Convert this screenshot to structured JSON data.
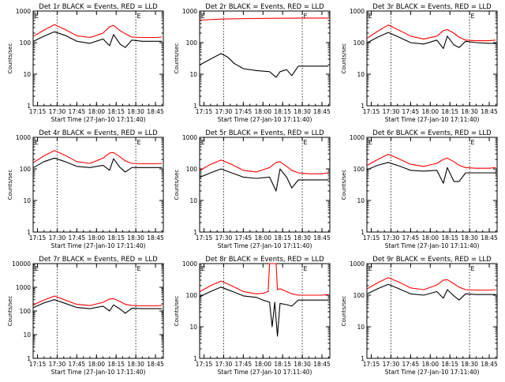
{
  "colors": {
    "events": "#000000",
    "lld": "#ff0000",
    "axis": "#000000",
    "background": "#ffffff"
  },
  "common": {
    "xlabel": "Start Time (27-Jan-10 17:11:40)",
    "ylabel": "Counts/sec",
    "xticks": [
      "17:15",
      "17:30",
      "17:45",
      "18:00",
      "18:15",
      "18:30",
      "18:45"
    ],
    "marker_label": "E"
  },
  "chart_data": [
    {
      "type": "line",
      "title": "Det 1r BLACK = Events, RED = LLD",
      "y_scale": "log",
      "ylim": [
        1,
        1000
      ],
      "yticks": [
        "1",
        "10",
        "100",
        "1000"
      ],
      "x_range_minutes": [
        "17:11:40",
        "18:51"
      ],
      "vlines": [
        "17:30",
        "18:30"
      ],
      "series": [
        {
          "name": "Events",
          "color": "#000000",
          "x": [
            "17:12",
            "17:20",
            "17:28",
            "17:36",
            "17:45",
            "17:55",
            "18:05",
            "18:10",
            "18:13",
            "18:18",
            "18:22",
            "18:27",
            "18:35",
            "18:45",
            "18:50"
          ],
          "values": [
            110,
            160,
            220,
            170,
            110,
            95,
            130,
            80,
            180,
            90,
            70,
            120,
            110,
            110,
            110
          ]
        },
        {
          "name": "LLD",
          "color": "#ff0000",
          "x": [
            "17:12",
            "17:20",
            "17:28",
            "17:36",
            "17:45",
            "17:55",
            "18:05",
            "18:10",
            "18:13",
            "18:18",
            "18:22",
            "18:27",
            "18:35",
            "18:45",
            "18:50"
          ],
          "values": [
            160,
            250,
            370,
            260,
            165,
            145,
            200,
            320,
            350,
            240,
            190,
            150,
            145,
            145,
            150
          ]
        }
      ]
    },
    {
      "type": "line",
      "title": "Det 2r BLACK = Events, RED = LLD",
      "y_scale": "log",
      "ylim": [
        1,
        1000
      ],
      "yticks": [
        "1",
        "10",
        "100",
        "1000"
      ],
      "x_range_minutes": [
        "17:11:40",
        "18:51"
      ],
      "vlines": [
        "17:30",
        "18:30"
      ],
      "series": [
        {
          "name": "Events",
          "color": "#000000",
          "x": [
            "17:12",
            "17:20",
            "17:28",
            "17:33",
            "17:38",
            "17:45",
            "17:55",
            "18:05",
            "18:10",
            "18:13",
            "18:18",
            "18:22",
            "18:27",
            "18:35",
            "18:45",
            "18:50"
          ],
          "values": [
            20,
            30,
            45,
            35,
            22,
            15,
            13,
            12,
            8,
            12,
            14,
            9,
            18,
            18,
            18,
            18
          ]
        },
        {
          "name": "LLD",
          "color": "#ff0000",
          "x": [
            "17:12",
            "17:30",
            "17:50",
            "18:10",
            "18:30",
            "18:50"
          ],
          "values": [
            520,
            560,
            580,
            590,
            600,
            600
          ]
        }
      ]
    },
    {
      "type": "line",
      "title": "Det 3r BLACK = Events, RED = LLD",
      "y_scale": "log",
      "ylim": [
        1,
        1000
      ],
      "yticks": [
        "1",
        "10",
        "100",
        "1000"
      ],
      "x_range_minutes": [
        "17:11:40",
        "18:51"
      ],
      "vlines": [
        "17:30",
        "18:30"
      ],
      "series": [
        {
          "name": "Events",
          "color": "#000000",
          "x": [
            "17:12",
            "17:20",
            "17:28",
            "17:36",
            "17:45",
            "17:55",
            "18:05",
            "18:10",
            "18:13",
            "18:18",
            "18:22",
            "18:27",
            "18:35",
            "18:45",
            "18:50"
          ],
          "values": [
            100,
            150,
            210,
            150,
            100,
            90,
            120,
            65,
            160,
            85,
            70,
            110,
            100,
            95,
            95
          ]
        },
        {
          "name": "LLD",
          "color": "#ff0000",
          "x": [
            "17:12",
            "17:20",
            "17:28",
            "17:36",
            "17:45",
            "17:55",
            "18:05",
            "18:10",
            "18:13",
            "18:18",
            "18:22",
            "18:27",
            "18:35",
            "18:45",
            "18:50"
          ],
          "values": [
            140,
            230,
            360,
            250,
            160,
            130,
            160,
            240,
            260,
            200,
            150,
            120,
            115,
            115,
            120
          ]
        }
      ]
    },
    {
      "type": "line",
      "title": "Det 4r BLACK = Events, RED = LLD",
      "y_scale": "log",
      "ylim": [
        1,
        1000
      ],
      "yticks": [
        "1",
        "10",
        "100",
        "1000"
      ],
      "x_range_minutes": [
        "17:11:40",
        "18:51"
      ],
      "vlines": [
        "17:30",
        "18:30"
      ],
      "series": [
        {
          "name": "Events",
          "color": "#000000",
          "x": [
            "17:12",
            "17:20",
            "17:28",
            "17:36",
            "17:45",
            "17:55",
            "18:05",
            "18:10",
            "18:13",
            "18:18",
            "18:22",
            "18:27",
            "18:35",
            "18:45",
            "18:50"
          ],
          "values": [
            110,
            170,
            220,
            170,
            120,
            110,
            130,
            90,
            210,
            110,
            80,
            110,
            110,
            110,
            110
          ]
        },
        {
          "name": "LLD",
          "color": "#ff0000",
          "x": [
            "17:12",
            "17:20",
            "17:28",
            "17:36",
            "17:45",
            "17:55",
            "18:05",
            "18:10",
            "18:13",
            "18:18",
            "18:22",
            "18:27",
            "18:35",
            "18:45",
            "18:50"
          ],
          "values": [
            160,
            260,
            380,
            270,
            170,
            150,
            220,
            320,
            330,
            240,
            180,
            150,
            145,
            145,
            150
          ]
        }
      ]
    },
    {
      "type": "line",
      "title": "Det 5r BLACK = Events, RED = LLD",
      "y_scale": "log",
      "ylim": [
        1,
        1000
      ],
      "yticks": [
        "1",
        "10",
        "100",
        "1000"
      ],
      "x_range_minutes": [
        "17:11:40",
        "18:51"
      ],
      "vlines": [
        "17:30",
        "18:30"
      ],
      "series": [
        {
          "name": "Events",
          "color": "#000000",
          "x": [
            "17:12",
            "17:20",
            "17:28",
            "17:36",
            "17:45",
            "17:55",
            "18:05",
            "18:10",
            "18:13",
            "18:18",
            "18:22",
            "18:27",
            "18:35",
            "18:45",
            "18:50"
          ],
          "values": [
            55,
            75,
            100,
            75,
            55,
            50,
            55,
            20,
            100,
            55,
            25,
            45,
            45,
            45,
            45
          ]
        },
        {
          "name": "LLD",
          "color": "#ff0000",
          "x": [
            "17:12",
            "17:20",
            "17:28",
            "17:36",
            "17:45",
            "17:55",
            "18:05",
            "18:10",
            "18:13",
            "18:18",
            "18:22",
            "18:27",
            "18:35",
            "18:45",
            "18:50"
          ],
          "values": [
            90,
            140,
            190,
            140,
            90,
            80,
            110,
            160,
            170,
            120,
            90,
            75,
            70,
            70,
            75
          ]
        }
      ]
    },
    {
      "type": "line",
      "title": "Det 6r BLACK = Events, RED = LLD",
      "y_scale": "log",
      "ylim": [
        1,
        1000
      ],
      "yticks": [
        "1",
        "10",
        "100",
        "1000"
      ],
      "x_range_minutes": [
        "17:11:40",
        "18:51"
      ],
      "vlines": [
        "17:30",
        "18:30"
      ],
      "series": [
        {
          "name": "Events",
          "color": "#000000",
          "x": [
            "17:12",
            "17:20",
            "17:28",
            "17:36",
            "17:45",
            "17:55",
            "18:05",
            "18:10",
            "18:13",
            "18:18",
            "18:22",
            "18:27",
            "18:35",
            "18:45",
            "18:50"
          ],
          "values": [
            95,
            130,
            160,
            125,
            90,
            85,
            90,
            35,
            110,
            40,
            40,
            75,
            75,
            75,
            75
          ]
        },
        {
          "name": "LLD",
          "color": "#ff0000",
          "x": [
            "17:12",
            "17:20",
            "17:28",
            "17:36",
            "17:45",
            "17:55",
            "18:05",
            "18:10",
            "18:13",
            "18:18",
            "18:22",
            "18:27",
            "18:35",
            "18:45",
            "18:50"
          ],
          "values": [
            130,
            200,
            290,
            210,
            140,
            120,
            150,
            200,
            220,
            170,
            130,
            110,
            105,
            105,
            110
          ]
        }
      ]
    },
    {
      "type": "line",
      "title": "Det 7r BLACK = Events, RED = LLD",
      "y_scale": "log",
      "ylim": [
        1,
        10000
      ],
      "yticks": [
        "1",
        "10",
        "100",
        "1000",
        "10000"
      ],
      "x_range_minutes": [
        "17:11:40",
        "18:51"
      ],
      "vlines": [
        "17:30",
        "18:30"
      ],
      "series": [
        {
          "name": "Events",
          "color": "#000000",
          "x": [
            "17:12",
            "17:20",
            "17:28",
            "17:36",
            "17:45",
            "17:55",
            "18:05",
            "18:10",
            "18:13",
            "18:18",
            "18:22",
            "18:27",
            "18:35",
            "18:45",
            "18:50"
          ],
          "values": [
            140,
            220,
            300,
            210,
            140,
            125,
            160,
            100,
            180,
            120,
            80,
            130,
            125,
            125,
            125
          ]
        },
        {
          "name": "LLD",
          "color": "#ff0000",
          "x": [
            "17:12",
            "17:20",
            "17:28",
            "17:36",
            "17:45",
            "17:55",
            "18:05",
            "18:10",
            "18:13",
            "18:18",
            "18:22",
            "18:27",
            "18:35",
            "18:45",
            "18:50"
          ],
          "values": [
            180,
            290,
            430,
            290,
            190,
            170,
            230,
            320,
            330,
            250,
            190,
            170,
            165,
            165,
            170
          ]
        }
      ]
    },
    {
      "type": "line",
      "title": "Det 8r BLACK = Events, RED = LLD",
      "y_scale": "log",
      "ylim": [
        1,
        1000
      ],
      "yticks": [
        "1",
        "10",
        "100",
        "1000"
      ],
      "x_range_minutes": [
        "17:11:40",
        "18:51"
      ],
      "vlines": [
        "17:30",
        "18:30"
      ],
      "series": [
        {
          "name": "Events",
          "color": "#000000",
          "x": [
            "17:12",
            "17:20",
            "17:28",
            "17:36",
            "17:45",
            "17:55",
            "18:00",
            "18:05",
            "18:07",
            "18:09",
            "18:11",
            "18:13",
            "18:18",
            "18:22",
            "18:27",
            "18:35",
            "18:45",
            "18:50"
          ],
          "values": [
            90,
            130,
            180,
            135,
            95,
            85,
            70,
            60,
            10,
            60,
            5,
            55,
            50,
            45,
            70,
            70,
            70,
            70
          ]
        },
        {
          "name": "LLD",
          "color": "#ff0000",
          "x": [
            "17:12",
            "17:20",
            "17:28",
            "17:36",
            "17:45",
            "17:55",
            "18:00",
            "18:04",
            "18:05",
            "18:10",
            "18:11",
            "18:13",
            "18:18",
            "18:22",
            "18:27",
            "18:35",
            "18:45",
            "18:50"
          ],
          "values": [
            130,
            200,
            280,
            200,
            130,
            110,
            115,
            130,
            1000,
            1000,
            150,
            160,
            130,
            110,
            100,
            100,
            100,
            105
          ]
        }
      ]
    },
    {
      "type": "line",
      "title": "Det 9r BLACK = Events, RED = LLD",
      "y_scale": "log",
      "ylim": [
        1,
        1000
      ],
      "yticks": [
        "1",
        "10",
        "100",
        "1000"
      ],
      "x_range_minutes": [
        "17:11:40",
        "18:51"
      ],
      "vlines": [
        "17:30",
        "18:30"
      ],
      "series": [
        {
          "name": "Events",
          "color": "#000000",
          "x": [
            "17:12",
            "17:20",
            "17:28",
            "17:36",
            "17:45",
            "17:55",
            "18:05",
            "18:10",
            "18:13",
            "18:18",
            "18:22",
            "18:27",
            "18:35",
            "18:45",
            "18:50"
          ],
          "values": [
            110,
            160,
            220,
            160,
            110,
            100,
            130,
            80,
            150,
            95,
            70,
            110,
            105,
            105,
            105
          ]
        },
        {
          "name": "LLD",
          "color": "#ff0000",
          "x": [
            "17:12",
            "17:20",
            "17:28",
            "17:36",
            "17:45",
            "17:55",
            "18:05",
            "18:10",
            "18:13",
            "18:18",
            "18:22",
            "18:27",
            "18:35",
            "18:45",
            "18:50"
          ],
          "values": [
            160,
            250,
            360,
            260,
            170,
            150,
            210,
            300,
            310,
            230,
            180,
            150,
            145,
            145,
            150
          ]
        }
      ]
    }
  ]
}
